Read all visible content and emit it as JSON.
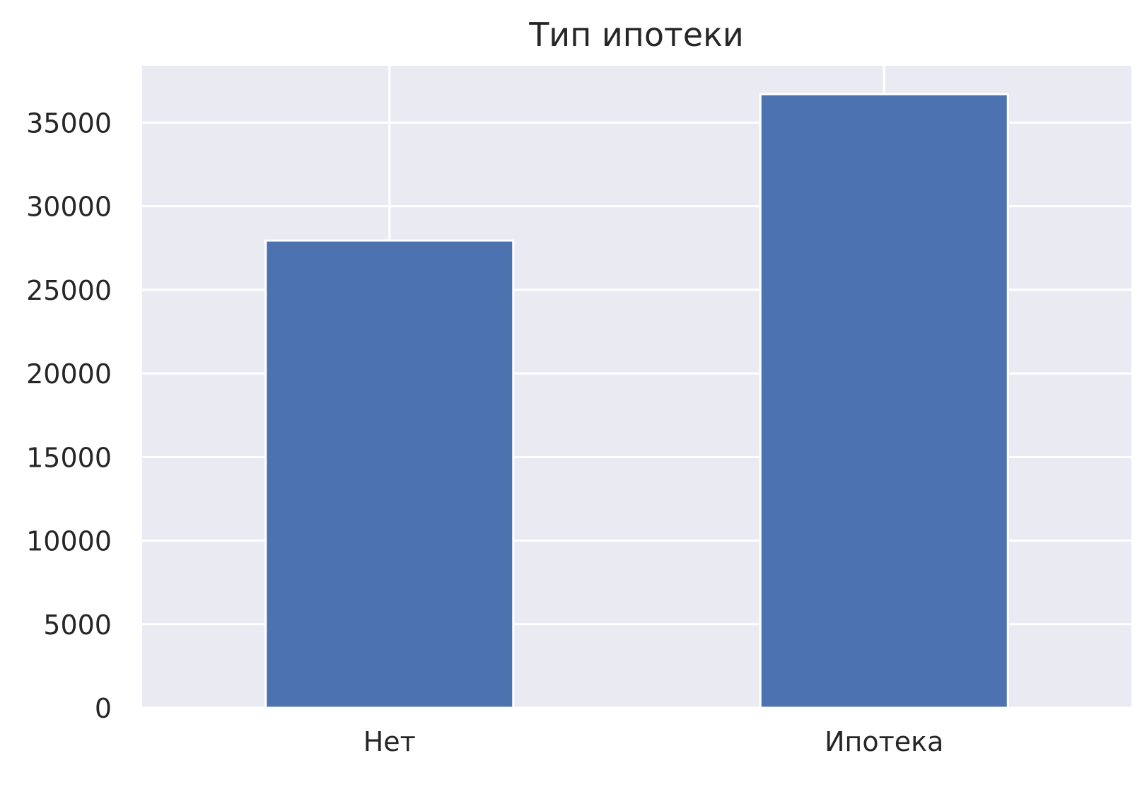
{
  "chart_data": {
    "type": "bar",
    "title": "Тип ипотеки",
    "xlabel": "",
    "ylabel": "",
    "categories": [
      "Нет",
      "Ипотека"
    ],
    "values": [
      27950,
      36700
    ],
    "ylim": [
      0,
      38400
    ],
    "yticks": [
      0,
      5000,
      10000,
      15000,
      20000,
      25000,
      30000,
      35000
    ],
    "ytick_labels": [
      "0",
      "5000",
      "10000",
      "15000",
      "20000",
      "25000",
      "30000",
      "35000"
    ],
    "grid": true,
    "legend": "none",
    "colors": {
      "bar": "#4c72b0",
      "plot_background": "#eaeaf2",
      "grid": "#ffffff",
      "text": "#262626"
    }
  }
}
